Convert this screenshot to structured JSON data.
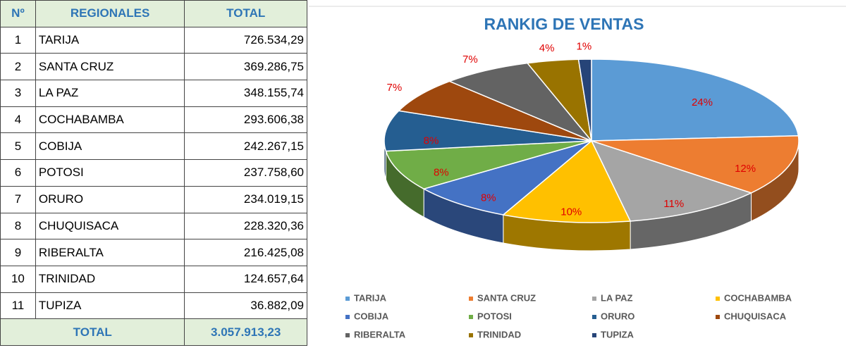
{
  "table": {
    "headers": [
      "Nº",
      "REGIONALES",
      "TOTAL"
    ],
    "rows": [
      [
        "1",
        "TARIJA",
        "726.534,29"
      ],
      [
        "2",
        "SANTA CRUZ",
        "369.286,75"
      ],
      [
        "3",
        "LA PAZ",
        "348.155,74"
      ],
      [
        "4",
        "COCHABAMBA",
        "293.606,38"
      ],
      [
        "5",
        "COBIJA",
        "242.267,15"
      ],
      [
        "6",
        "POTOSI",
        "237.758,60"
      ],
      [
        "7",
        "ORURO",
        "234.019,15"
      ],
      [
        "8",
        "CHUQUISACA",
        "228.320,36"
      ],
      [
        "9",
        "RIBERALTA",
        "216.425,08"
      ],
      [
        "10",
        "TRINIDAD",
        "124.657,64"
      ],
      [
        "11",
        "TUPIZA",
        "36.882,09"
      ]
    ],
    "footer": {
      "label": "TOTAL",
      "total": "3.057.913,23"
    }
  },
  "chart_data": {
    "type": "pie",
    "title": "RANKIG DE VENTAS",
    "categories": [
      "TARIJA",
      "SANTA CRUZ",
      "LA PAZ",
      "COCHABAMBA",
      "COBIJA",
      "POTOSI",
      "ORURO",
      "CHUQUISACA",
      "RIBERALTA",
      "TRINIDAD",
      "TUPIZA"
    ],
    "values": [
      24,
      12,
      11,
      10,
      8,
      8,
      8,
      7,
      7,
      4,
      1
    ],
    "value_labels": [
      "24%",
      "12%",
      "11%",
      "10%",
      "8%",
      "8%",
      "8%",
      "7%",
      "7%",
      "4%",
      "1%"
    ],
    "colors": [
      "#5b9bd5",
      "#ed7d31",
      "#a5a5a5",
      "#ffc000",
      "#4472c4",
      "#70ad47",
      "#255e91",
      "#9e480e",
      "#636363",
      "#997300",
      "#264478"
    ],
    "legend": "bottom"
  }
}
